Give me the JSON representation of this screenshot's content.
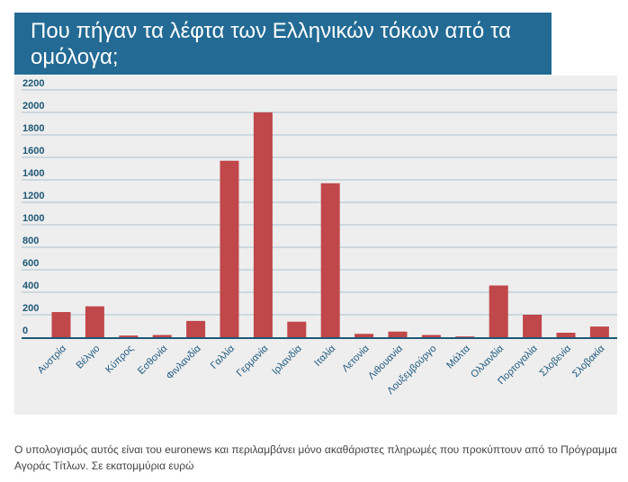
{
  "title": "Που πήγαν τα λέφτα των Ελληνικών τόκων από τα ομόλογα;",
  "caption": "Ο υπολογισμός αυτός είναι του euronews και περιλαμβάνει μόνο ακαθάριστες πληρωμές που προκύπτουν από το Πρόγραμμα Αγοράς Τίτλων. Σε εκατομμύρια ευρώ",
  "colors": {
    "title_bg": "#236b94",
    "bar": "#c0474a",
    "grid": "#a9c3cf",
    "axis": "#1e5877",
    "tick_label": "#1f5a80",
    "panel": "#eeeeee"
  },
  "chart_data": {
    "type": "bar",
    "title": "Που πήγαν τα λέφτα των Ελληνικών τόκων από τα ομόλογα;",
    "xlabel": "",
    "ylabel": "",
    "unit": "εκατομμύρια ευρώ",
    "ylim": [
      0,
      2200
    ],
    "yticks": [
      0,
      200,
      400,
      600,
      800,
      1000,
      1200,
      1400,
      1600,
      1800,
      2000,
      2200
    ],
    "grid": true,
    "categories": [
      "Αυστρία",
      "Βέλγιο",
      "Κύπρος",
      "Εσθονία",
      "Φινλανδία",
      "Γαλλία",
      "Γερμανία",
      "Ιρλανδία",
      "Ιταλία",
      "Λετονία",
      "Λιθουανία",
      "Λουξεμβούργο",
      "Μάλτα",
      "Ολλανδία",
      "Πορτογαλία",
      "Σλοβενία",
      "Σλοβακία"
    ],
    "values": [
      224,
      275,
      15,
      20,
      145,
      1570,
      2000,
      138,
      1370,
      30,
      50,
      20,
      7,
      460,
      200,
      40,
      95
    ]
  }
}
